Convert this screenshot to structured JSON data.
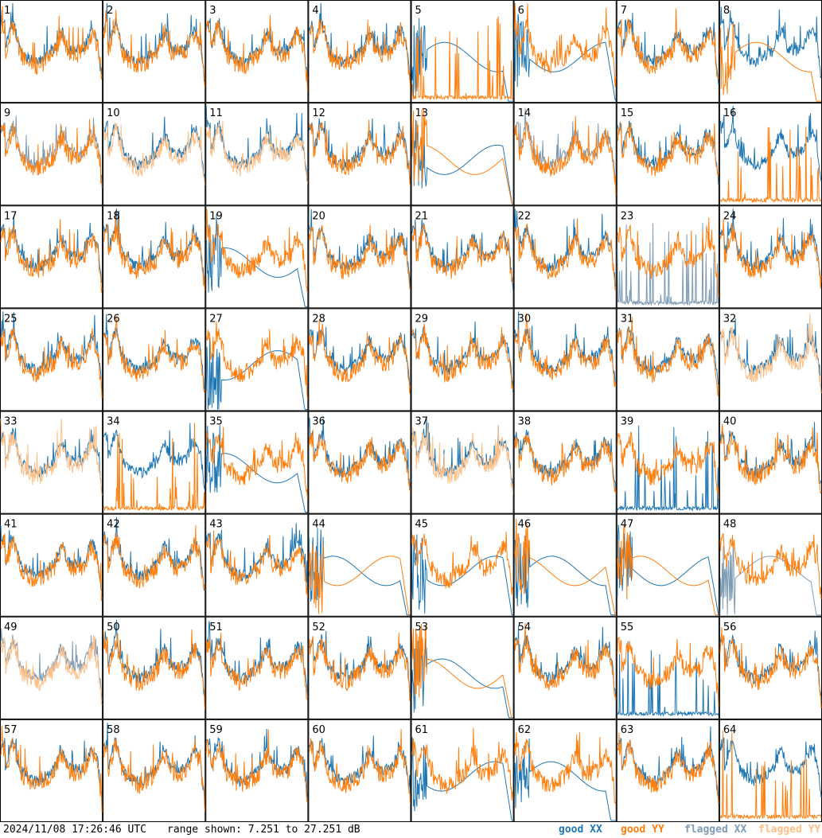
{
  "chart_data": {
    "type": "line",
    "grid": {
      "rows": 8,
      "cols": 8
    },
    "panels": [
      "1",
      "2",
      "3",
      "4",
      "5",
      "6",
      "7",
      "8",
      "9",
      "10",
      "11",
      "12",
      "13",
      "14",
      "15",
      "16",
      "17",
      "18",
      "19",
      "20",
      "21",
      "22",
      "23",
      "24",
      "25",
      "26",
      "27",
      "28",
      "29",
      "30",
      "31",
      "32",
      "33",
      "34",
      "35",
      "36",
      "37",
      "38",
      "39",
      "40",
      "41",
      "42",
      "43",
      "44",
      "45",
      "46",
      "47",
      "48",
      "49",
      "50",
      "51",
      "52",
      "53",
      "54",
      "55",
      "56",
      "57",
      "58",
      "59",
      "60",
      "61",
      "62",
      "63",
      "64"
    ],
    "y_range_db": [
      7.251,
      27.251
    ],
    "series": [
      {
        "name": "good XX",
        "color": "#1f77b4"
      },
      {
        "name": "good YY",
        "color": "#ff7f0e"
      },
      {
        "name": "flagged XX",
        "color": "#7f9cb5"
      },
      {
        "name": "flagged YY",
        "color": "#ffbf86"
      }
    ],
    "flagged_xx_panels": [
      9,
      14,
      23,
      48,
      49
    ],
    "flagged_yy_panels": [
      10,
      11,
      32,
      33,
      37,
      49
    ],
    "dead_xx_panels": [
      5,
      6,
      13,
      19,
      27,
      35,
      44,
      45,
      46,
      47,
      48,
      53,
      61,
      62
    ],
    "dead_yy_panels": [
      8,
      13,
      44,
      46,
      47,
      53
    ],
    "spiky_xx_panels": [
      23,
      39,
      55
    ],
    "spiky_yy_panels": [
      5,
      16,
      34,
      64
    ],
    "yy_dominant_panels": [
      25,
      26,
      32,
      33
    ]
  },
  "footer": {
    "timestamp": "2024/11/08 17:26:46 UTC",
    "range": "range shown: 7.251 to 27.251 dB",
    "legend": [
      {
        "label": "good XX",
        "color": "#1f77b4"
      },
      {
        "label": "good YY",
        "color": "#ff7f0e"
      },
      {
        "label": "flagged XX",
        "color": "#7f9cb5"
      },
      {
        "label": "flagged YY",
        "color": "#ffbf86"
      }
    ]
  }
}
